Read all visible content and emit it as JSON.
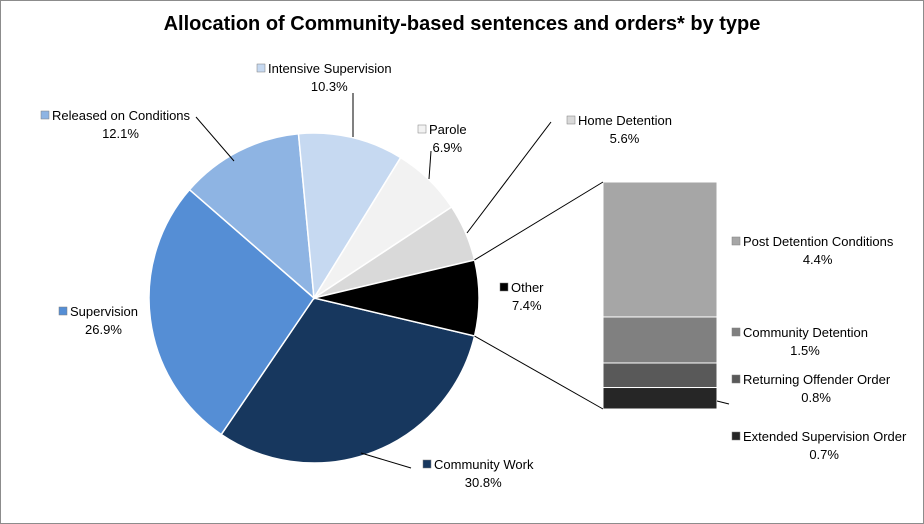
{
  "chart_data": {
    "type": "bar-of-pie",
    "title": "Allocation of Community-based sentences and orders* by type",
    "pie": [
      {
        "name": "Community Work",
        "value": 30.8,
        "label": "30.8%",
        "color": "#17375E"
      },
      {
        "name": "Supervision",
        "value": 26.9,
        "label": "26.9%",
        "color": "#558ED5"
      },
      {
        "name": "Released on Conditions",
        "value": 12.1,
        "label": "12.1%",
        "color": "#8EB4E3"
      },
      {
        "name": "Intensive Supervision",
        "value": 10.3,
        "label": "10.3%",
        "color": "#C6D9F1"
      },
      {
        "name": "Parole",
        "value": 6.9,
        "label": "6.9%",
        "color": "#F2F2F2"
      },
      {
        "name": "Home Detention",
        "value": 5.6,
        "label": "5.6%",
        "color": "#D9D9D9"
      },
      {
        "name": "Other",
        "value": 7.4,
        "label": "7.4%",
        "color": "#000000"
      }
    ],
    "bar": [
      {
        "name": "Post Detention Conditions",
        "value": 4.4,
        "label": "4.4%",
        "color": "#A6A6A6"
      },
      {
        "name": "Community Detention",
        "value": 1.5,
        "label": "1.5%",
        "color": "#808080"
      },
      {
        "name": "Returning Offender Order",
        "value": 0.8,
        "label": "0.8%",
        "color": "#595959"
      },
      {
        "name": "Extended Supervision Order",
        "value": 0.7,
        "label": "0.7%",
        "color": "#262626"
      }
    ]
  }
}
